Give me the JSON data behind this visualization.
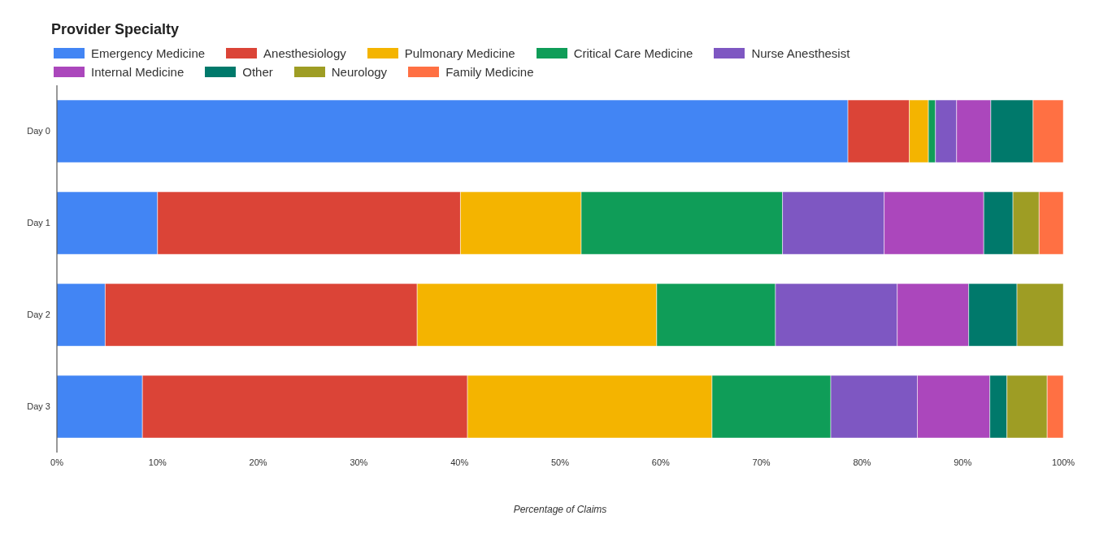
{
  "chart_data": {
    "type": "bar",
    "orientation": "horizontal",
    "stacked": true,
    "title": "Provider Specialty",
    "xlabel": "Percentage of Claims",
    "categories": [
      "Day 0",
      "Day 1",
      "Day 2",
      "Day 3"
    ],
    "series": [
      {
        "name": "Emergency Medicine",
        "color": "#4285f4",
        "values": [
          78.6,
          10.0,
          4.8,
          8.5
        ]
      },
      {
        "name": "Anesthesiology",
        "color": "#db4437",
        "values": [
          6.1,
          30.1,
          31.0,
          32.3
        ]
      },
      {
        "name": "Pulmonary Medicine",
        "color": "#f4b400",
        "values": [
          1.9,
          12.0,
          23.8,
          24.3
        ]
      },
      {
        "name": "Critical Care Medicine",
        "color": "#0f9d58",
        "values": [
          0.7,
          20.0,
          11.8,
          11.8
        ]
      },
      {
        "name": "Nurse Anesthesist",
        "color": "#7e57c2",
        "values": [
          2.1,
          10.1,
          12.1,
          8.6
        ]
      },
      {
        "name": "Internal Medicine",
        "color": "#ab47bc",
        "values": [
          3.4,
          9.9,
          7.1,
          7.2
        ]
      },
      {
        "name": "Other",
        "color": "#00796b",
        "values": [
          4.2,
          2.9,
          4.8,
          1.7
        ]
      },
      {
        "name": "Neurology",
        "color": "#9e9d24",
        "values": [
          0,
          2.6,
          4.6,
          4.0
        ]
      },
      {
        "name": "Family Medicine",
        "color": "#ff7043",
        "values": [
          3.0,
          2.4,
          0,
          1.6
        ]
      }
    ],
    "xlim": [
      0,
      100
    ],
    "xticks": [
      {
        "value": 0,
        "label": "0%"
      },
      {
        "value": 10,
        "label": "10%"
      },
      {
        "value": 20,
        "label": "20%"
      },
      {
        "value": 30,
        "label": "30%"
      },
      {
        "value": 40,
        "label": "40%"
      },
      {
        "value": 50,
        "label": "50%"
      },
      {
        "value": 60,
        "label": "60%"
      },
      {
        "value": 70,
        "label": "70%"
      },
      {
        "value": 80,
        "label": "80%"
      },
      {
        "value": 90,
        "label": "90%"
      },
      {
        "value": 100,
        "label": "100%"
      }
    ],
    "grid": false,
    "legend": "top left"
  }
}
